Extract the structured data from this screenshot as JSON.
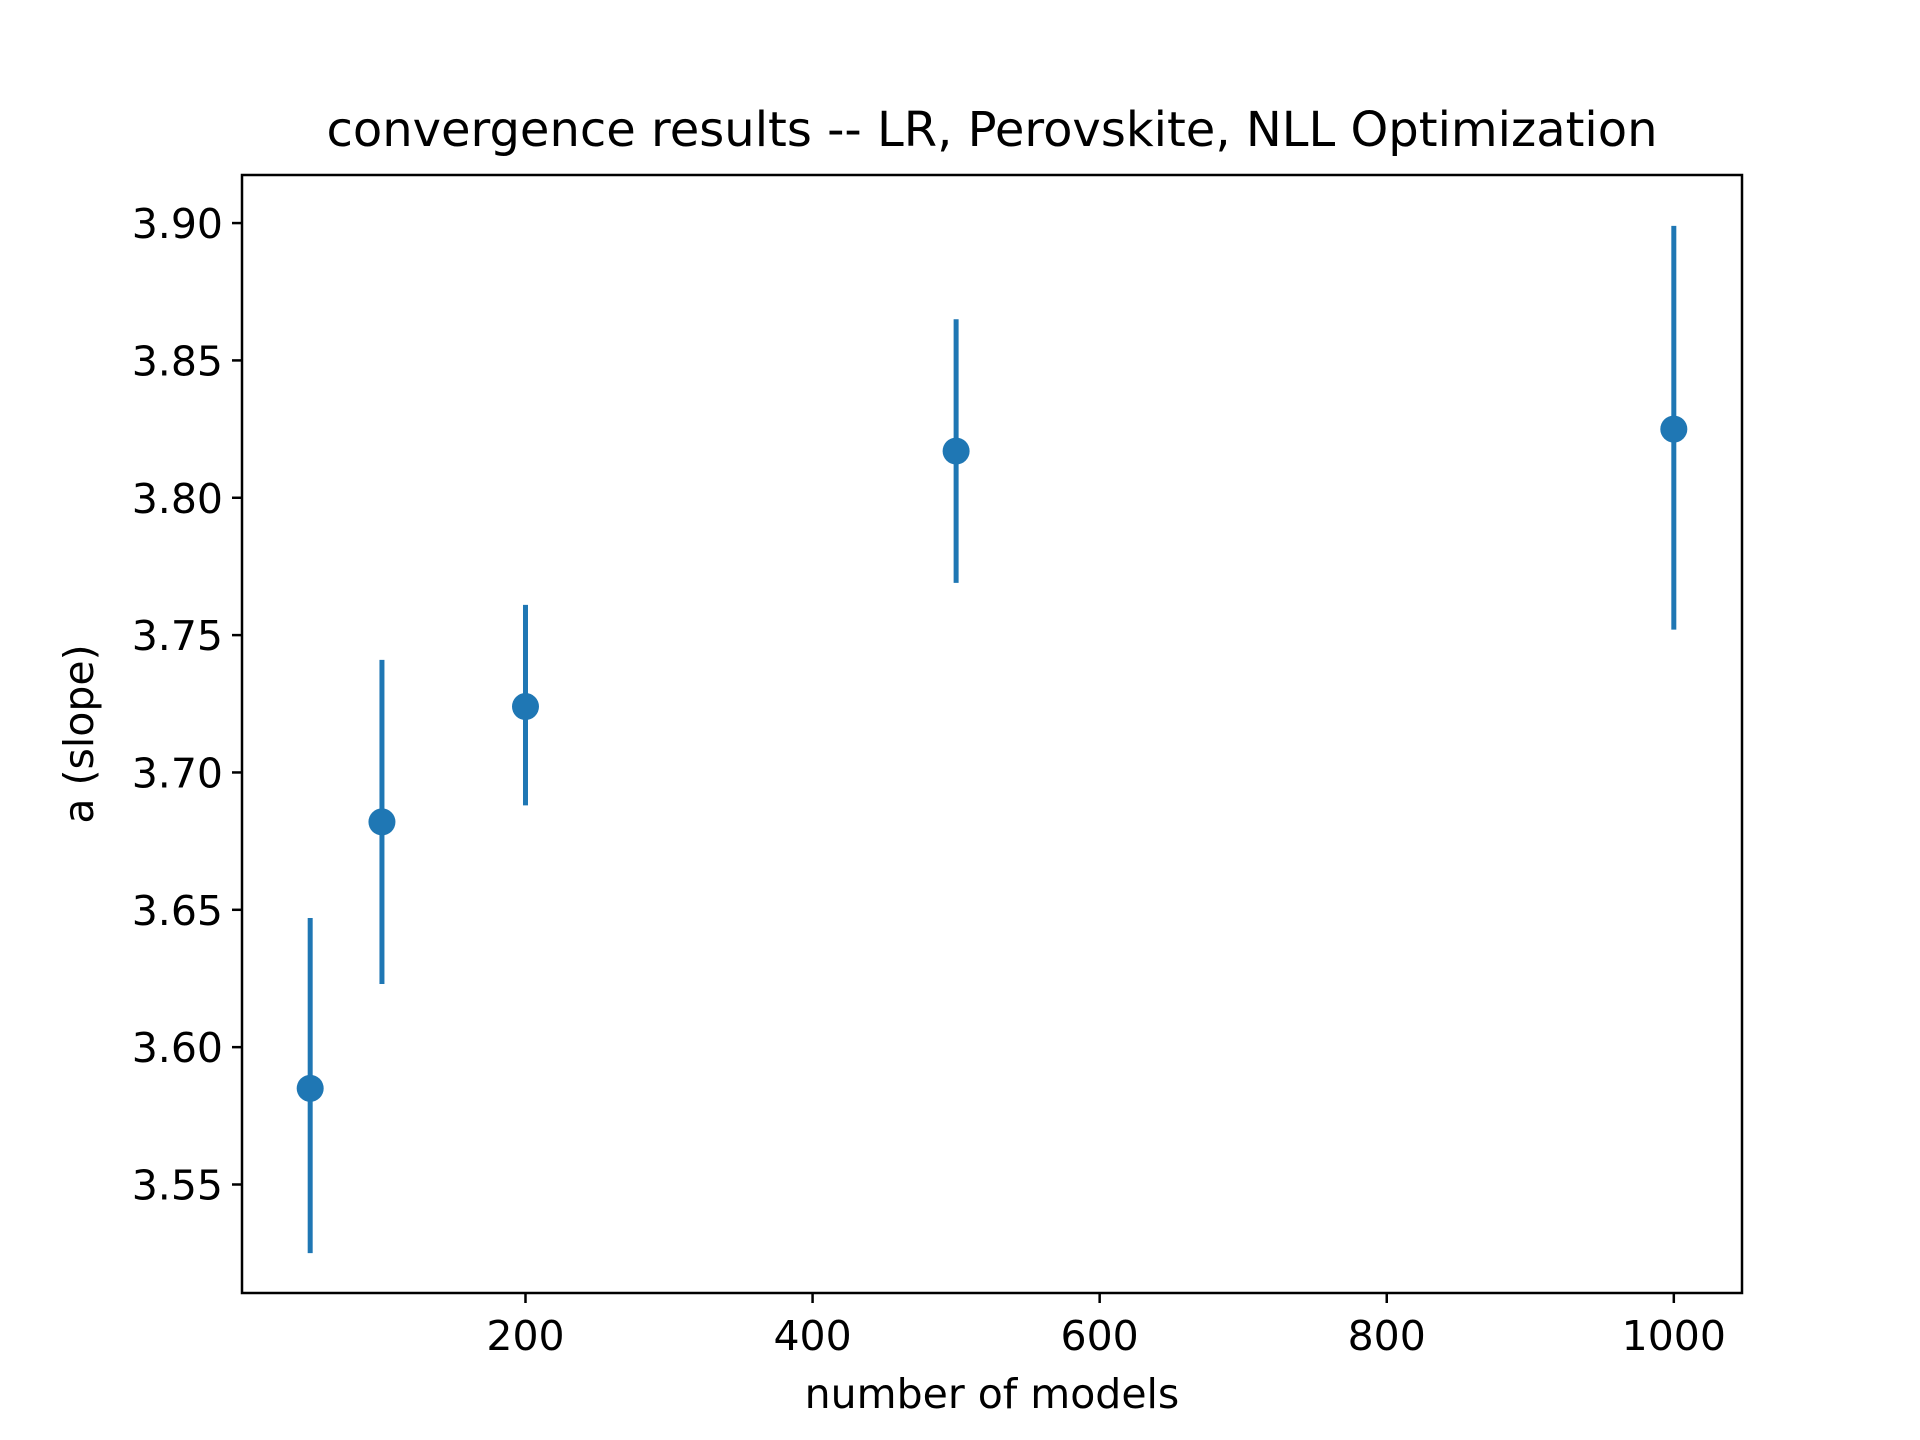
{
  "chart_data": {
    "type": "scatter",
    "title": "convergence results -- LR, Perovskite, NLL Optimization",
    "xlabel": "number of models",
    "ylabel": "a (slope)",
    "x_ticks": [
      200,
      400,
      600,
      800,
      1000
    ],
    "y_ticks": [
      3.55,
      3.6,
      3.65,
      3.7,
      3.75,
      3.8,
      3.85,
      3.9
    ],
    "x_tick_labels": [
      "200",
      "400",
      "600",
      "800",
      "1000"
    ],
    "y_tick_labels": [
      "3.55",
      "3.60",
      "3.65",
      "3.70",
      "3.75",
      "3.80",
      "3.85",
      "3.90"
    ],
    "xlim": [
      2.5,
      1047.5
    ],
    "ylim": [
      3.5105,
      3.9175
    ],
    "grid": false,
    "error_bars": true,
    "series": [
      {
        "color": "#1f77b4",
        "points": [
          {
            "x": 50,
            "y": 3.585,
            "yerr_low": 3.525,
            "yerr_high": 3.647
          },
          {
            "x": 100,
            "y": 3.682,
            "yerr_low": 3.623,
            "yerr_high": 3.741
          },
          {
            "x": 200,
            "y": 3.724,
            "yerr_low": 3.688,
            "yerr_high": 3.761
          },
          {
            "x": 500,
            "y": 3.817,
            "yerr_low": 3.769,
            "yerr_high": 3.865
          },
          {
            "x": 1000,
            "y": 3.825,
            "yerr_low": 3.752,
            "yerr_high": 3.899
          }
        ]
      }
    ]
  }
}
